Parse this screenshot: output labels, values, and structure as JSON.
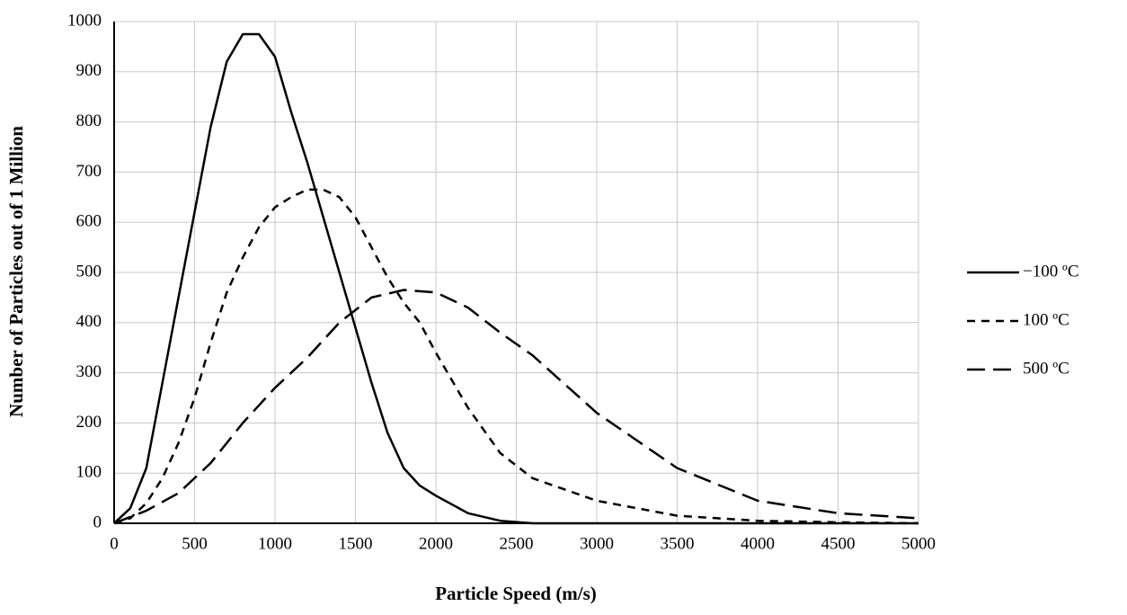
{
  "chart_data": {
    "type": "line",
    "xlabel": "Particle Speed (m/s)",
    "ylabel": "Number of Particles out of 1 Million",
    "xlim": [
      0,
      5000
    ],
    "xticks": [
      0,
      500,
      1000,
      1500,
      2000,
      2500,
      3000,
      3500,
      4000,
      4500,
      5000
    ],
    "ylim": [
      0,
      1000
    ],
    "yticks": [
      0,
      100,
      200,
      300,
      400,
      500,
      600,
      700,
      800,
      900,
      1000
    ],
    "grid": true,
    "legend": "right",
    "series": [
      {
        "name": "−100 ºC",
        "color": "#000000",
        "dash": "none",
        "x": [
          0,
          100,
          200,
          300,
          400,
          500,
          600,
          700,
          800,
          900,
          1000,
          1100,
          1200,
          1300,
          1400,
          1500,
          1600,
          1700,
          1800,
          1900,
          2000,
          2200,
          2400,
          2600,
          3000,
          4000,
          5000
        ],
        "values": [
          0,
          30,
          110,
          280,
          450,
          620,
          790,
          920,
          975,
          975,
          930,
          820,
          720,
          610,
          500,
          390,
          280,
          180,
          110,
          75,
          55,
          20,
          5,
          0,
          0,
          0,
          0
        ]
      },
      {
        "name": "100 ºC",
        "color": "#000000",
        "dash": "9,7",
        "x": [
          0,
          100,
          200,
          300,
          400,
          500,
          600,
          700,
          800,
          900,
          1000,
          1100,
          1200,
          1300,
          1400,
          1500,
          1600,
          1700,
          1800,
          1900,
          2000,
          2200,
          2400,
          2600,
          3000,
          3500,
          4000,
          4500,
          5000
        ],
        "values": [
          0,
          10,
          40,
          90,
          160,
          250,
          360,
          460,
          530,
          590,
          630,
          650,
          665,
          665,
          650,
          610,
          550,
          490,
          440,
          400,
          340,
          230,
          140,
          90,
          45,
          15,
          5,
          2,
          0
        ]
      },
      {
        "name": "500 ºC",
        "color": "#000000",
        "dash": "20,9",
        "x": [
          0,
          200,
          400,
          600,
          800,
          1000,
          1200,
          1400,
          1600,
          1800,
          2000,
          2200,
          2400,
          2600,
          3000,
          3500,
          4000,
          4500,
          5000
        ],
        "values": [
          0,
          25,
          60,
          120,
          200,
          270,
          330,
          400,
          450,
          465,
          460,
          430,
          380,
          335,
          220,
          110,
          45,
          20,
          10
        ]
      }
    ]
  }
}
